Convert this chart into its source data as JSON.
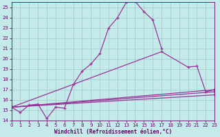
{
  "xlabel": "Windchill (Refroidissement éolien,°C)",
  "xlim": [
    0,
    23
  ],
  "ylim": [
    14,
    25.5
  ],
  "yticks": [
    14,
    15,
    16,
    17,
    18,
    19,
    20,
    21,
    22,
    23,
    24,
    25
  ],
  "xticks": [
    0,
    1,
    2,
    3,
    4,
    5,
    6,
    7,
    8,
    9,
    10,
    11,
    12,
    13,
    14,
    15,
    16,
    17,
    18,
    19,
    20,
    21,
    22,
    23
  ],
  "line_color": "#993399",
  "bg_color": "#c5eaea",
  "grid_color": "#9dcaca",
  "series": [
    {
      "x": [
        0,
        1,
        2,
        3,
        4,
        5,
        6,
        7,
        8,
        9,
        10,
        11,
        12,
        13,
        14,
        15,
        16,
        17
      ],
      "y": [
        15.3,
        14.8,
        15.5,
        15.6,
        14.2,
        15.3,
        15.2,
        17.5,
        18.8,
        19.5,
        20.5,
        23.0,
        24.0,
        25.5,
        25.6,
        24.6,
        23.8,
        21.0
      ]
    },
    {
      "x": [
        0,
        17,
        20,
        21,
        22,
        23
      ],
      "y": [
        15.3,
        20.7,
        19.2,
        19.3,
        16.8,
        17.0
      ]
    },
    {
      "comment": "straight line from 0,15.3 to 23,17.0",
      "x": [
        0,
        23
      ],
      "y": [
        15.3,
        17.0
      ]
    },
    {
      "comment": "straight line from 0,15.3 to 23,16.8",
      "x": [
        0,
        23
      ],
      "y": [
        15.3,
        16.8
      ]
    },
    {
      "comment": "straight line from 0,15.3 to 23,16.5",
      "x": [
        0,
        23
      ],
      "y": [
        15.3,
        16.5
      ]
    }
  ]
}
